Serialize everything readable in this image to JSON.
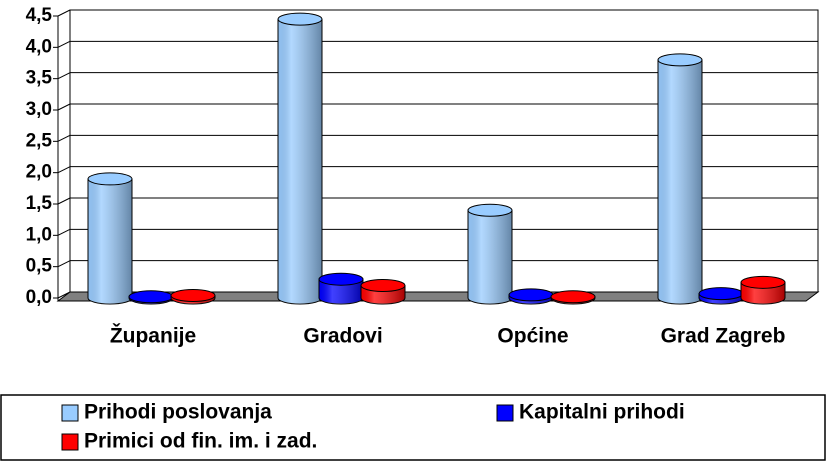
{
  "chart_data": {
    "type": "bar",
    "categories": [
      "Županije",
      "Gradovi",
      "Općine",
      "Grad Zagreb"
    ],
    "series": [
      {
        "name": "Prihodi poslovanja",
        "color": "#99ccff",
        "values": [
          1.9,
          4.45,
          1.4,
          3.8
        ]
      },
      {
        "name": "Kapitalni prihodi",
        "color": "#0000ff",
        "values": [
          0.02,
          0.3,
          0.05,
          0.07
        ]
      },
      {
        "name": "Primici od fin. im. i zad.",
        "color": "#ff0000",
        "values": [
          0.04,
          0.2,
          0.02,
          0.25
        ]
      }
    ],
    "ylim": [
      0,
      4.5
    ],
    "yticks": [
      {
        "value": 0,
        "label": "0,0"
      },
      {
        "value": 0.5,
        "label": "0,5"
      },
      {
        "value": 1,
        "label": "1,0"
      },
      {
        "value": 1.5,
        "label": "1,5"
      },
      {
        "value": 2,
        "label": "2,0"
      },
      {
        "value": 2.5,
        "label": "2,5"
      },
      {
        "value": 3,
        "label": "3,0"
      },
      {
        "value": 3.5,
        "label": "3,5"
      },
      {
        "value": 4,
        "label": "4,0"
      },
      {
        "value": 4.5,
        "label": "4,5"
      }
    ],
    "grid": true,
    "legend": "bottom"
  }
}
